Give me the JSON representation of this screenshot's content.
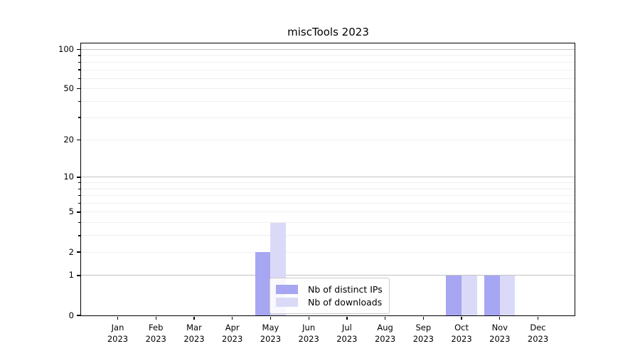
{
  "chart_data": {
    "type": "bar",
    "title": "miscTools 2023",
    "categories": [
      "Jan 2023",
      "Feb 2023",
      "Mar 2023",
      "Apr 2023",
      "May 2023",
      "Jun 2023",
      "Jul 2023",
      "Aug 2023",
      "Sep 2023",
      "Oct 2023",
      "Nov 2023",
      "Dec 2023"
    ],
    "series": [
      {
        "name": "Nb of distinct IPs",
        "color": "#a6a6f2",
        "values": [
          0,
          0,
          0,
          0,
          2,
          0,
          0,
          0,
          0,
          1,
          1,
          0
        ]
      },
      {
        "name": "Nb of downloads",
        "color": "#dadaf8",
        "values": [
          0,
          0,
          0,
          0,
          4,
          0,
          0,
          0,
          0,
          1,
          1,
          0
        ]
      }
    ],
    "xlabel": "",
    "ylabel": "",
    "yscale": "log1p",
    "ylim": [
      0,
      100
    ],
    "yticks": [
      0,
      1,
      2,
      5,
      10,
      20,
      50,
      100
    ],
    "major_gridlines": [
      1,
      10,
      100
    ],
    "minor_gridlines": [
      2,
      3,
      4,
      5,
      6,
      7,
      8,
      9,
      20,
      30,
      40,
      50,
      60,
      70,
      80,
      90
    ],
    "grid": true,
    "legend_position": "lower center"
  },
  "colors": {
    "major_grid": "#c2c2c2",
    "minor_grid": "#efefef",
    "spine": "#000000"
  }
}
